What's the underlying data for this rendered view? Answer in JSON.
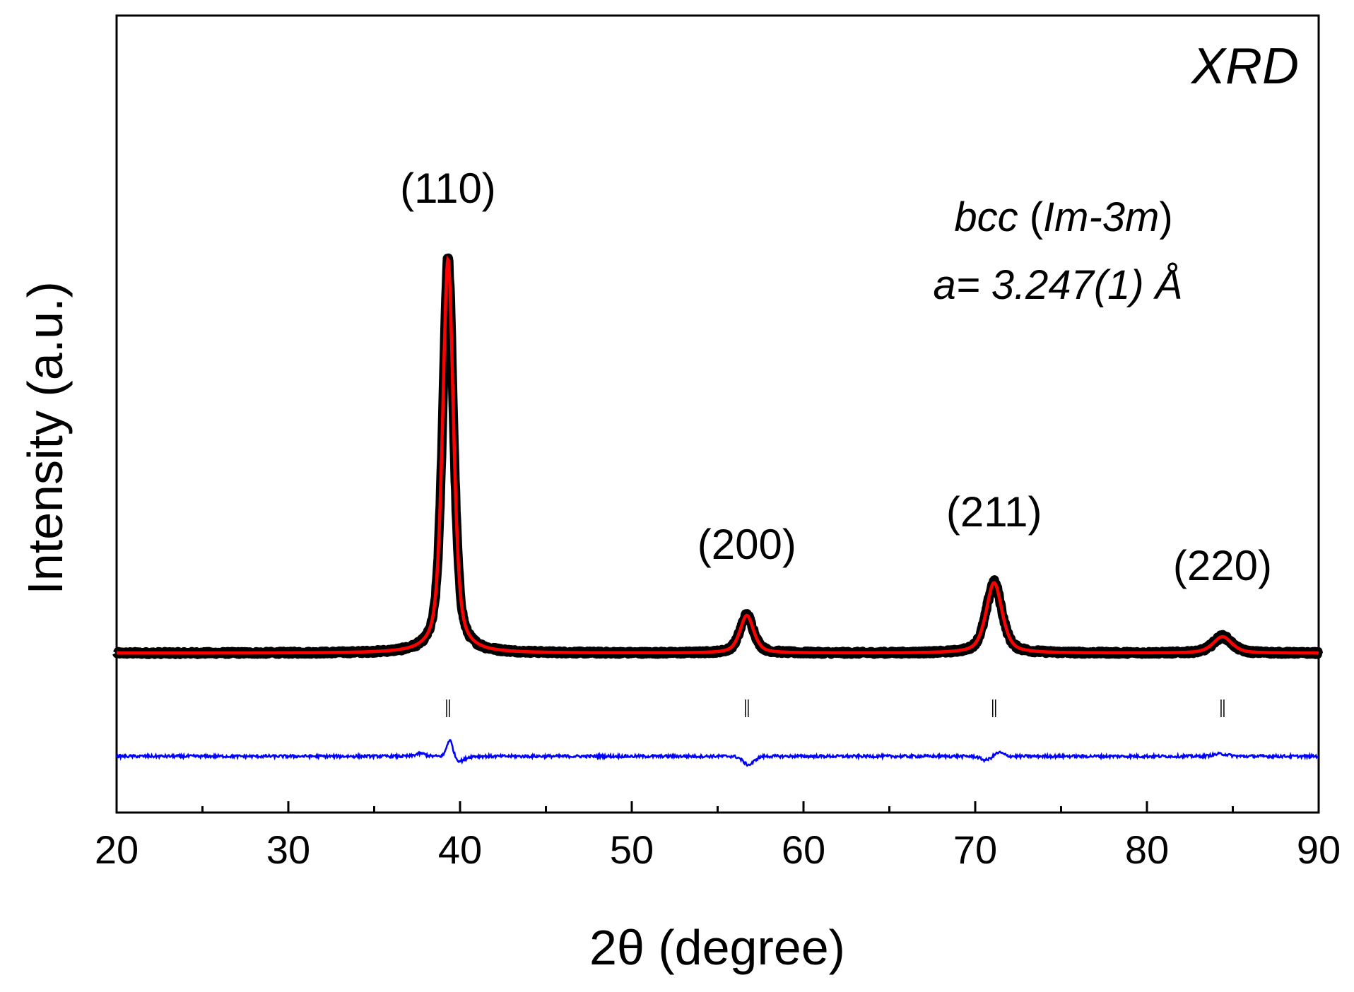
{
  "chart_data": {
    "type": "line",
    "title": "",
    "panel_label": "XRD",
    "xlabel": "2θ (degree)",
    "ylabel": "Intensity (a.u.)",
    "xlim": [
      20,
      90
    ],
    "x_ticks": [
      20,
      30,
      40,
      50,
      60,
      70,
      80,
      90
    ],
    "x_tick_labels": [
      "20",
      "30",
      "40",
      "50",
      "60",
      "70",
      "80",
      "90"
    ],
    "y_ticks_shown": false,
    "grid": false,
    "legend": "none",
    "annotation_phase_label": {
      "parts": [
        {
          "text": "bcc",
          "italic": true
        },
        {
          "text": " (",
          "italic": false
        },
        {
          "text": "Im-3m",
          "italic": true
        },
        {
          "text": ")",
          "italic": false
        }
      ]
    },
    "annotation_lattice": "a= 3.247(1) Å",
    "peaks": [
      {
        "hkl": "(110)",
        "two_theta": 39.3,
        "height": 0.84,
        "fwhm": 0.75
      },
      {
        "hkl": "(200)",
        "two_theta": 56.7,
        "height": 0.08,
        "fwhm": 0.95
      },
      {
        "hkl": "(211)",
        "two_theta": 71.1,
        "height": 0.15,
        "fwhm": 1.1
      },
      {
        "hkl": "(220)",
        "two_theta": 84.4,
        "height": 0.035,
        "fwhm": 1.3
      }
    ],
    "bragg_positions": [
      39.3,
      56.7,
      71.1,
      84.4
    ],
    "baseline_intensity": 0.0,
    "difference_offset": -0.22,
    "y_range": [
      -0.34,
      1.36
    ],
    "series": [
      {
        "role": "observed",
        "color": "#000000"
      },
      {
        "role": "calculated",
        "color": "#ff0000"
      },
      {
        "role": "difference",
        "color": "#0000ff"
      },
      {
        "role": "bragg-ticks",
        "color": "#000000"
      }
    ]
  }
}
